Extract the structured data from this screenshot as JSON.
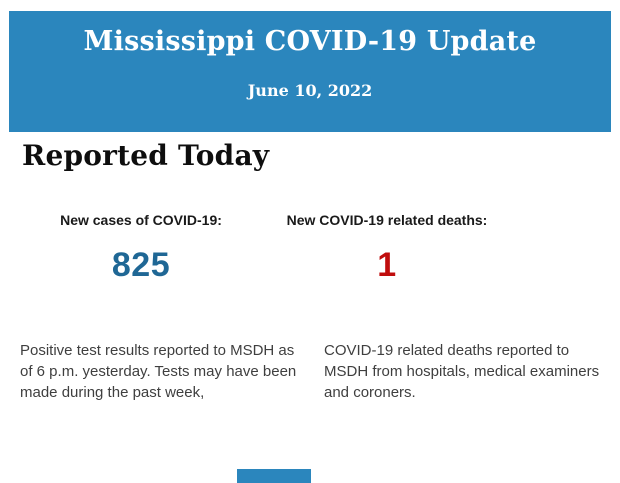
{
  "header": {
    "title": "Mississippi COVID-19 Update",
    "date": "June 10, 2022",
    "bg_color": "#2b86bd",
    "text_color": "#ffffff"
  },
  "section": {
    "title": "Reported Today"
  },
  "stats": [
    {
      "label": "New cases of COVID-19:",
      "value": "825",
      "value_color": "#1f6795",
      "description": "Positive test results reported to MSDH as of 6 p.m. yesterday. Tests may have been made during the past week,"
    },
    {
      "label": "New COVID-19 related deaths:",
      "value": "1",
      "value_color": "#c00d0d",
      "description": "COVID-19 related deaths reported to MSDH from hospitals, medical examiners and coroners."
    }
  ],
  "footer": {
    "partial_bar_color": "#2b86bd"
  }
}
